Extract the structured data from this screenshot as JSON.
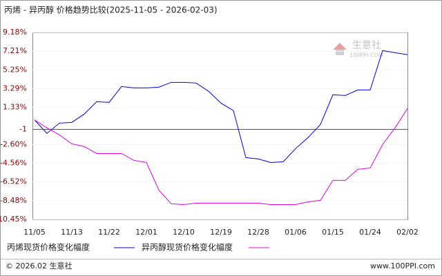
{
  "chart_data": {
    "type": "line",
    "title": "丙烯 - 异丙醇 价格趋势比较(2025-11-05 - 2026-02-03)",
    "categories": [
      "11/05",
      null,
      null,
      "11/13",
      null,
      null,
      "11/22",
      null,
      null,
      "12/01",
      null,
      null,
      "12/10",
      null,
      null,
      "12/19",
      null,
      null,
      "12/28",
      null,
      null,
      "01/06",
      null,
      null,
      "01/15",
      null,
      null,
      "01/24",
      null,
      null,
      "02/02"
    ],
    "series": [
      {
        "name": "丙烯现货价格变化幅度",
        "color": "#0000cc",
        "values": [
          0,
          -1.42,
          -0.34,
          -0.26,
          0.61,
          1.91,
          1.84,
          3.5,
          3.36,
          3.36,
          3.43,
          3.94,
          3.94,
          3.87,
          3.0,
          1.76,
          0.97,
          -3.96,
          -4.1,
          -4.47,
          -4.4,
          -3.02,
          -1.86,
          -0.48,
          2.63,
          2.56,
          3.14,
          3.14,
          7.27,
          7.05,
          6.84
        ]
      },
      {
        "name": "异丙醇现货价格变化幅度",
        "color": "#e000e0",
        "values": [
          0,
          -0.84,
          -1.57,
          -2.51,
          -2.8,
          -3.53,
          -3.53,
          -3.53,
          -4.25,
          -4.47,
          -7.37,
          -8.81,
          -8.89,
          -8.74,
          -8.74,
          -8.74,
          -8.74,
          -8.74,
          -8.74,
          -8.89,
          -8.89,
          -8.89,
          -8.6,
          -8.45,
          -6.35,
          -6.35,
          -5.19,
          -5.05,
          -2.58,
          -0.84,
          1.19
        ]
      }
    ],
    "ylim": [
      -10.45,
      9.18
    ],
    "yticks": [
      {
        "value": 9.18,
        "label": "9.18%"
      },
      {
        "value": 7.21,
        "label": "7.21%"
      },
      {
        "value": 5.25,
        "label": "5.25%"
      },
      {
        "value": 3.29,
        "label": "3.29%"
      },
      {
        "value": 1.33,
        "label": "1.33%"
      },
      -1,
      {
        "value": -2.6,
        "label": "-2.60%"
      },
      {
        "value": -4.56,
        "label": "-4.56%"
      },
      {
        "value": -6.52,
        "label": "-6.52%"
      },
      {
        "value": -8.48,
        "label": "-8.48%"
      },
      {
        "value": -10.45,
        "label": "-10.45%"
      }
    ],
    "watermark": {
      "brand": "生意社",
      "site": "100PPI.COM"
    },
    "footer": {
      "left": "© 2026.02 生意社",
      "right": "www.100PPI.com"
    }
  }
}
